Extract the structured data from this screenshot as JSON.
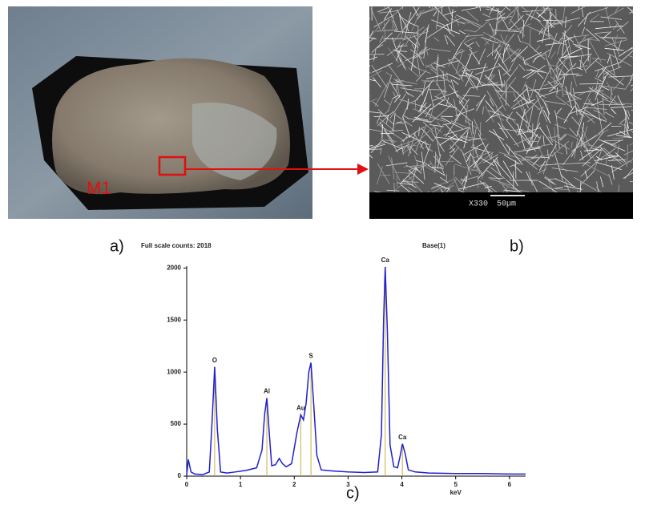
{
  "panels": {
    "a_label": "a)",
    "b_label": "b)",
    "c_label": "c)",
    "sample_label": "M1",
    "sem_magnification": "X330",
    "sem_scale": "50µm"
  },
  "chart_data": {
    "type": "line",
    "title": "Full scale counts: 2018",
    "subtitle": "Base(1)",
    "x_label": "keV",
    "x": [
      0,
      0.03,
      0.08,
      0.15,
      0.3,
      0.42,
      0.47,
      0.52,
      0.57,
      0.63,
      0.75,
      0.9,
      1.1,
      1.3,
      1.4,
      1.45,
      1.49,
      1.53,
      1.58,
      1.65,
      1.72,
      1.78,
      1.85,
      1.95,
      2.05,
      2.12,
      2.17,
      2.22,
      2.27,
      2.31,
      2.36,
      2.42,
      2.5,
      2.7,
      3.0,
      3.3,
      3.55,
      3.62,
      3.66,
      3.69,
      3.73,
      3.78,
      3.85,
      3.92,
      3.97,
      4.01,
      4.06,
      4.12,
      4.25,
      4.5,
      5.0,
      5.5,
      6.0,
      6.3
    ],
    "series": [
      {
        "color": "#1f1fd0",
        "values": [
          10,
          160,
          40,
          20,
          15,
          40,
          500,
          1050,
          450,
          40,
          30,
          40,
          55,
          80,
          250,
          600,
          750,
          450,
          100,
          110,
          170,
          120,
          90,
          120,
          420,
          590,
          540,
          700,
          1000,
          1090,
          700,
          200,
          60,
          50,
          40,
          35,
          40,
          400,
          1500,
          2010,
          1400,
          300,
          90,
          80,
          200,
          310,
          220,
          60,
          40,
          30,
          25,
          25,
          20,
          20
        ]
      }
    ],
    "peaks": [
      {
        "x": 0.52,
        "height": 1050,
        "label": "O"
      },
      {
        "x": 1.49,
        "height": 750,
        "label": "Al"
      },
      {
        "x": 2.12,
        "height": 590,
        "label": "Au"
      },
      {
        "x": 2.31,
        "height": 1090,
        "label": "S"
      },
      {
        "x": 3.69,
        "height": 2010,
        "label": "Ca"
      },
      {
        "x": 4.01,
        "height": 310,
        "label": "Ca"
      }
    ],
    "peak_color": "#c8b040",
    "xlim": [
      0,
      6.3
    ],
    "xticks": [
      0,
      1,
      2,
      3,
      4,
      5,
      6
    ],
    "ylim": [
      0,
      2018
    ],
    "yticks": [
      0,
      500,
      1000,
      1500,
      2000
    ]
  }
}
